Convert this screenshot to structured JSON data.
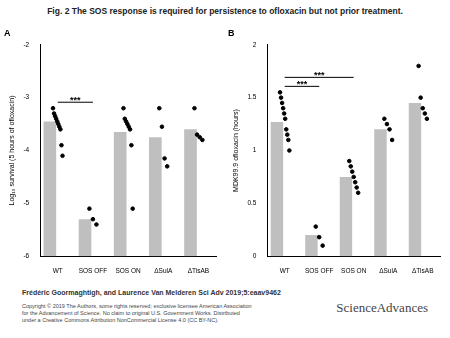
{
  "header": {
    "title": "Fig. 2 The SOS response is required for persistence to ofloxacin but not prior treatment."
  },
  "chart_data": [
    {
      "type": "bar",
      "title": "A",
      "y_label": "Log₁₀ survival (5 hours of ofloxacin)",
      "categories": [
        "WT",
        "SOS OFF",
        "SOS ON",
        "ΔSulA",
        "ΔTisAB"
      ],
      "values": [
        -3.45,
        -5.3,
        -3.65,
        -3.75,
        -3.6
      ],
      "points": [
        [
          -3.2,
          -3.3,
          -3.35,
          -3.4,
          -3.45,
          -3.5,
          -3.55,
          -3.6,
          -3.9,
          -4.1
        ],
        [
          -5.1,
          -5.3,
          -5.4
        ],
        [
          -3.2,
          -3.4,
          -3.45,
          -3.5,
          -3.55,
          -3.6,
          -3.9,
          -5.1
        ],
        [
          -3.2,
          -3.55,
          -4.15,
          -4.3
        ],
        [
          -3.2,
          -3.7,
          -3.75,
          -3.8
        ]
      ],
      "color": "#bfbfbf",
      "ylim": [
        -6,
        -2
      ],
      "yticks": [
        -6,
        -5,
        -4,
        -3,
        -2
      ],
      "grid": false,
      "annotations": [
        {
          "text": "***",
          "from": "WT",
          "to": "SOS OFF"
        }
      ]
    },
    {
      "type": "bar",
      "title": "B",
      "y_label": "MDK99.9 ofloxacin (hours)",
      "categories": [
        "WT",
        "SOS OFF",
        "SOS ON",
        "ΔSulA",
        "ΔTisAB"
      ],
      "values": [
        1.27,
        0.2,
        0.75,
        1.2,
        1.45
      ],
      "points": [
        [
          1.55,
          1.5,
          1.45,
          1.4,
          1.35,
          1.3,
          1.2,
          1.15,
          1.1,
          1.0
        ],
        [
          0.28,
          0.18,
          0.1
        ],
        [
          0.9,
          0.85,
          0.8,
          0.75,
          0.7,
          0.65,
          0.6
        ],
        [
          1.3,
          1.25,
          1.2,
          1.1
        ],
        [
          1.8,
          1.5,
          1.4,
          1.35,
          1.3
        ]
      ],
      "color": "#bfbfbf",
      "ylim": [
        0,
        2
      ],
      "yticks": [
        0,
        0.5,
        1,
        1.5,
        2
      ],
      "grid": false,
      "annotations": [
        {
          "text": "***",
          "from": "WT",
          "to": "SOS OFF"
        },
        {
          "text": "***",
          "from": "WT",
          "to": "SOS ON"
        }
      ]
    }
  ],
  "footer": {
    "citation": "Frédéric Goormaghtigh, and Laurence Van Melderen Sci Adv 2019;5:eaav9462",
    "copyright": [
      "Copyright © 2019 The Authors, some rights reserved; exclusive licensee American Association",
      "for the Advancement of Science. No claim to original U.S. Government Works. Distributed",
      "under a Creative Commons Attribution NonCommercial License 4.0 (CC BY-NC)."
    ],
    "logo": "ScienceAdvances"
  }
}
